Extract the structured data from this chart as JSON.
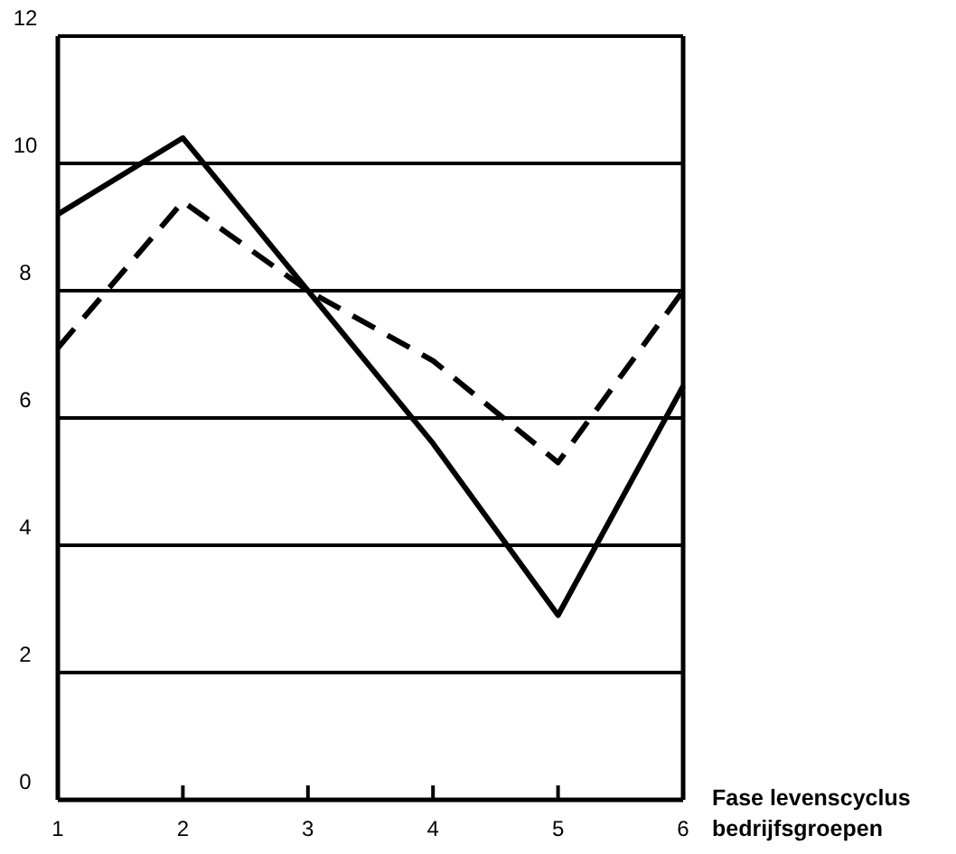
{
  "chart_data": {
    "type": "line",
    "xlabel": "Fase levenscyclus bedrijfsgroepen",
    "x": [
      1,
      2,
      3,
      4,
      5,
      6
    ],
    "series": [
      {
        "color": "#000000",
        "line_style": "solid",
        "values": [
          9.2,
          10.4,
          8.0,
          5.6,
          2.9,
          6.5
        ]
      },
      {
        "color": "#000000",
        "line_style": "dashed",
        "values": [
          7.1,
          9.4,
          8.0,
          6.9,
          5.3,
          8.0
        ]
      }
    ],
    "xlim": [
      1,
      6
    ],
    "ylim": [
      0,
      12
    ],
    "xticks": [
      1,
      2,
      3,
      4,
      5,
      6
    ],
    "yticks": [
      0,
      2,
      4,
      6,
      8,
      10,
      12
    ],
    "grid": "y",
    "marker": "none"
  }
}
